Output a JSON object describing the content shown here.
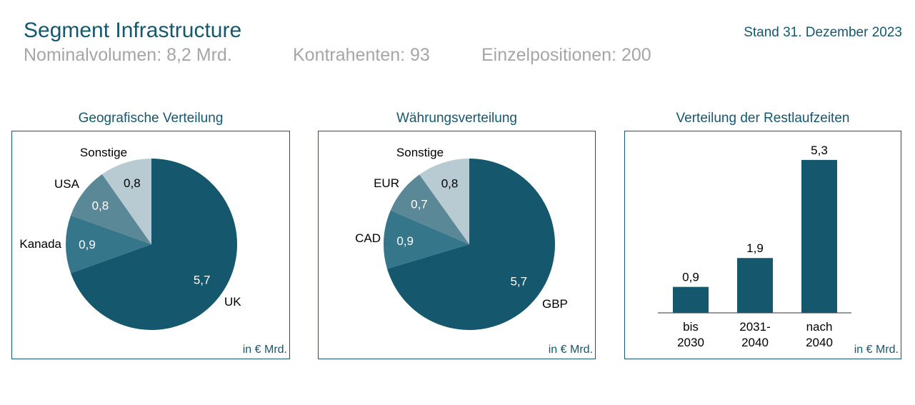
{
  "header": {
    "title": "Segment Infrastructure",
    "stand": "Stand 31. Dezember 2023",
    "metrics": [
      "Nominalvolumen: 8,2 Mrd.",
      "Kontrahenten: 93",
      "Einzelpositionen: 200"
    ]
  },
  "colors": {
    "accent": "#15586e",
    "muted": "#a6a6a6",
    "slice1": "#15586e",
    "slice2": "#35768b",
    "slice3": "#5b8896",
    "slice4": "#b8cbd3"
  },
  "chart_data": [
    {
      "type": "pie",
      "title": "Geografische Verteilung",
      "unit": "in € Mrd.",
      "labels": [
        "UK",
        "Kanada",
        "USA",
        "Sonstige"
      ],
      "values": [
        5.7,
        0.9,
        0.8,
        0.8
      ],
      "value_labels": [
        "5,7",
        "0,9",
        "0,8",
        "0,8"
      ]
    },
    {
      "type": "pie",
      "title": "Währungsverteilung",
      "unit": "in € Mrd.",
      "labels": [
        "GBP",
        "CAD",
        "EUR",
        "Sonstige"
      ],
      "values": [
        5.7,
        0.9,
        0.7,
        0.8
      ],
      "value_labels": [
        "5,7",
        "0,9",
        "0,7",
        "0,8"
      ]
    },
    {
      "type": "bar",
      "title": "Verteilung der Restlaufzeiten",
      "unit": "in € Mrd.",
      "categories": [
        [
          "bis",
          "2030"
        ],
        [
          "2031-",
          "2040"
        ],
        [
          "nach",
          "2040"
        ]
      ],
      "values": [
        0.9,
        1.9,
        5.3
      ],
      "value_labels": [
        "0,9",
        "1,9",
        "5,3"
      ]
    }
  ]
}
